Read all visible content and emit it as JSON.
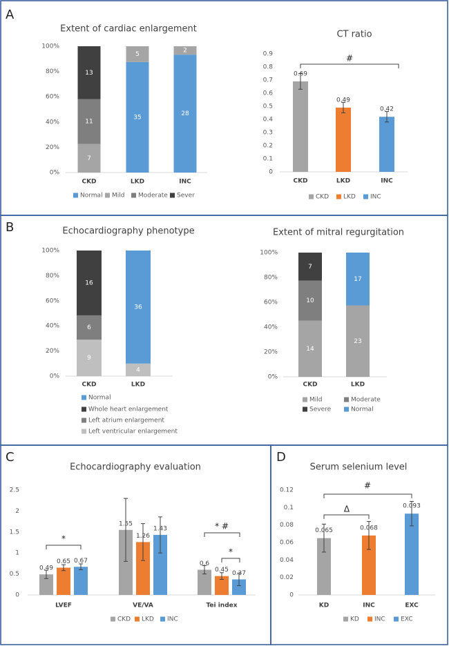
{
  "panel_labels": [
    "A",
    "B",
    "C",
    "D"
  ],
  "chart_data": [
    {
      "type": "bar",
      "stacked": "percent",
      "title": "Extent of cardiac enlargement",
      "categories": [
        "CKD",
        "LKD",
        "INC"
      ],
      "series": [
        {
          "name": "Normal",
          "color": "#5b9bd5",
          "values": [
            null,
            35,
            28
          ]
        },
        {
          "name": "Mild",
          "color": "#a5a5a5",
          "values": [
            7,
            5,
            2
          ]
        },
        {
          "name": "Moderate",
          "color": "#7f7f7f",
          "values": [
            11,
            null,
            null
          ]
        },
        {
          "name": "Sever",
          "color": "#404040",
          "values": [
            13,
            null,
            null
          ]
        }
      ],
      "ylim": [
        0,
        100
      ],
      "yticks": [
        {
          "value": 0,
          "label": "0%"
        },
        {
          "value": 20,
          "label": "20%"
        },
        {
          "value": 40,
          "label": "40%"
        },
        {
          "value": 60,
          "label": "60%"
        },
        {
          "value": 80,
          "label": "80%"
        },
        {
          "value": 100,
          "label": "100%"
        }
      ],
      "legend": "bottom"
    },
    {
      "type": "bar",
      "title": "CT ratio",
      "categories": [
        "CKD",
        "LKD",
        "INC"
      ],
      "values": [
        0.69,
        0.49,
        0.42
      ],
      "errors": [
        0.06,
        0.04,
        0.04
      ],
      "colors": [
        "#a5a5a5",
        "#ed7d31",
        "#5b9bd5"
      ],
      "ylim": [
        0,
        0.9
      ],
      "yticks": [
        0,
        0.1,
        0.2,
        0.3,
        0.4,
        0.5,
        0.6,
        0.7,
        0.8,
        0.9
      ],
      "annotations": [
        "#"
      ],
      "legend": "bottom"
    },
    {
      "type": "bar",
      "stacked": "percent",
      "title": "Echocardiography phenotype",
      "categories": [
        "CKD",
        "LKD"
      ],
      "series": [
        {
          "name": "Left ventricular enlargement",
          "color": "#bfbfbf",
          "values": [
            9,
            4
          ]
        },
        {
          "name": "Left atrium enlargement",
          "color": "#7f7f7f",
          "values": [
            6,
            null
          ]
        },
        {
          "name": "Whole heart enlargement",
          "color": "#404040",
          "values": [
            16,
            null
          ]
        },
        {
          "name": "Normal",
          "color": "#5b9bd5",
          "values": [
            null,
            36
          ]
        }
      ],
      "ylim": [
        0,
        100
      ],
      "yticks": [
        {
          "value": 0,
          "label": "0%"
        },
        {
          "value": 20,
          "label": "20%"
        },
        {
          "value": 40,
          "label": "40%"
        },
        {
          "value": 60,
          "label": "60%"
        },
        {
          "value": 80,
          "label": "80%"
        },
        {
          "value": 100,
          "label": "100%"
        }
      ],
      "legend": "bottom-vertical"
    },
    {
      "type": "bar",
      "stacked": "percent",
      "title": "Extent of  mitral regurgitation",
      "categories": [
        "CKD",
        "LKD"
      ],
      "series": [
        {
          "name": "Mild",
          "color": "#a5a5a5",
          "values": [
            14,
            23
          ]
        },
        {
          "name": "Moderate",
          "color": "#7f7f7f",
          "values": [
            10,
            null
          ]
        },
        {
          "name": "Severe",
          "color": "#404040",
          "values": [
            7,
            null
          ]
        },
        {
          "name": "Normal",
          "color": "#5b9bd5",
          "values": [
            null,
            17
          ]
        }
      ],
      "ylim": [
        0,
        100
      ],
      "yticks": [
        {
          "value": 0,
          "label": "0%"
        },
        {
          "value": 20,
          "label": "20%"
        },
        {
          "value": 40,
          "label": "40%"
        },
        {
          "value": 60,
          "label": "60%"
        },
        {
          "value": 80,
          "label": "80%"
        },
        {
          "value": 100,
          "label": "100%"
        }
      ],
      "legend": "bottom"
    },
    {
      "type": "bar",
      "title": "Echocardiography evaluation",
      "categories": [
        "LVEF",
        "VE/VA",
        "Tei index"
      ],
      "series": [
        {
          "name": "CKD",
          "color": "#a5a5a5",
          "values": [
            0.49,
            1.55,
            0.6
          ],
          "errors": [
            0.1,
            0.75,
            0.1
          ]
        },
        {
          "name": "LKD",
          "color": "#ed7d31",
          "values": [
            0.65,
            1.26,
            0.45
          ],
          "errors": [
            0.07,
            0.44,
            0.08
          ]
        },
        {
          "name": "INC",
          "color": "#5b9bd5",
          "values": [
            0.67,
            1.43,
            0.37
          ],
          "errors": [
            0.07,
            0.43,
            0.15
          ]
        }
      ],
      "ylim": [
        0,
        2.5
      ],
      "yticks": [
        0,
        0.5,
        1,
        1.5,
        2,
        2.5
      ],
      "annotations": [
        "*",
        "* #",
        "*"
      ],
      "legend": "bottom"
    },
    {
      "type": "bar",
      "title": "Serum selenium level",
      "categories": [
        "KD",
        "INC",
        "EXC"
      ],
      "values": [
        0.065,
        0.068,
        0.093
      ],
      "errors": [
        0.016,
        0.016,
        0.014
      ],
      "colors": [
        "#a5a5a5",
        "#ed7d31",
        "#5b9bd5"
      ],
      "ylim": [
        0,
        0.12
      ],
      "yticks": [
        0,
        0.02,
        0.04,
        0.06,
        0.08,
        0.1,
        0.12
      ],
      "annotations": [
        "Δ",
        "#"
      ],
      "legend": "bottom"
    }
  ]
}
